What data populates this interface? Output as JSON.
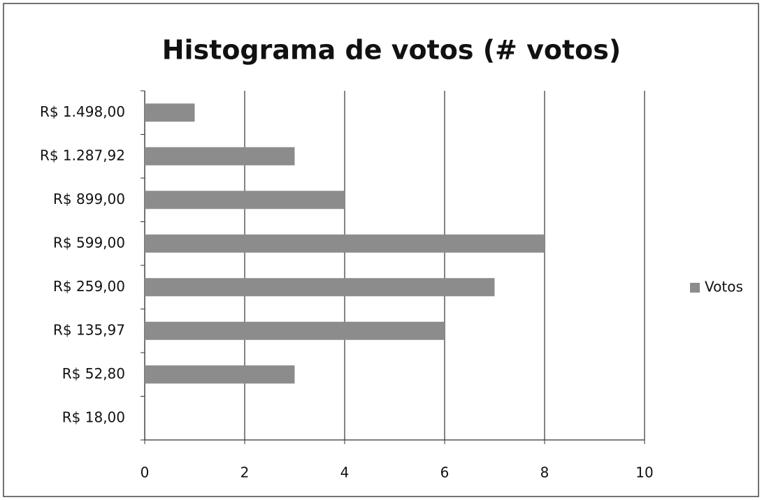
{
  "chart_data": {
    "type": "barh",
    "title": "Histograma de votos (# votos)",
    "categories": [
      "R$ 1.498,00",
      "R$ 1.287,92",
      "R$ 899,00",
      "R$ 599,00",
      "R$ 259,00",
      "R$ 135,97",
      "R$ 52,80",
      "R$ 18,00"
    ],
    "series": [
      {
        "name": "Votos",
        "color": "#8c8c8c",
        "values": [
          1,
          3,
          4,
          8,
          7,
          6,
          3,
          0
        ]
      }
    ],
    "xlim": [
      0,
      10
    ],
    "xticks": [
      0,
      2,
      4,
      6,
      8,
      10
    ],
    "grid": true,
    "legend": "right"
  }
}
